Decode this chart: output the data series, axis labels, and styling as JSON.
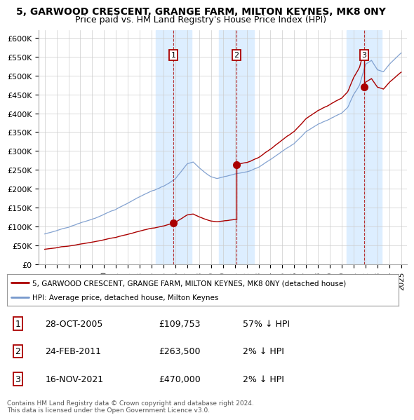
{
  "title": "5, GARWOOD CRESCENT, GRANGE FARM, MILTON KEYNES, MK8 0NY",
  "subtitle": "Price paid vs. HM Land Registry's House Price Index (HPI)",
  "ylim": [
    0,
    620000
  ],
  "xlim_start": 1994.5,
  "xlim_end": 2025.5,
  "yticks": [
    0,
    50000,
    100000,
    150000,
    200000,
    250000,
    300000,
    350000,
    400000,
    450000,
    500000,
    550000,
    600000
  ],
  "ytick_labels": [
    "£0",
    "£50K",
    "£100K",
    "£150K",
    "£200K",
    "£250K",
    "£300K",
    "£350K",
    "£400K",
    "£450K",
    "£500K",
    "£550K",
    "£600K"
  ],
  "xticks": [
    1995,
    1996,
    1997,
    1998,
    1999,
    2000,
    2001,
    2002,
    2003,
    2004,
    2005,
    2006,
    2007,
    2008,
    2009,
    2010,
    2011,
    2012,
    2013,
    2014,
    2015,
    2016,
    2017,
    2018,
    2019,
    2020,
    2021,
    2022,
    2023,
    2024,
    2025
  ],
  "sale_dates": [
    2005.83,
    2011.14,
    2021.88
  ],
  "sale_prices": [
    109753,
    263500,
    470000
  ],
  "sale_labels": [
    "1",
    "2",
    "3"
  ],
  "sale_info": [
    {
      "num": "1",
      "date": "28-OCT-2005",
      "price": "£109,753",
      "hpi": "57% ↓ HPI"
    },
    {
      "num": "2",
      "date": "24-FEB-2011",
      "price": "£263,500",
      "hpi": "2% ↓ HPI"
    },
    {
      "num": "3",
      "date": "16-NOV-2021",
      "price": "£470,000",
      "hpi": "2% ↓ HPI"
    }
  ],
  "legend_line1": "5, GARWOOD CRESCENT, GRANGE FARM, MILTON KEYNES, MK8 0NY (detached house)",
  "legend_line2": "HPI: Average price, detached house, Milton Keynes",
  "footer": "Contains HM Land Registry data © Crown copyright and database right 2024.\nThis data is licensed under the Open Government Licence v3.0.",
  "red_color": "#aa0000",
  "blue_color": "#7799cc",
  "shade_color": "#ddeeff",
  "background_color": "#ffffff",
  "grid_color": "#cccccc"
}
